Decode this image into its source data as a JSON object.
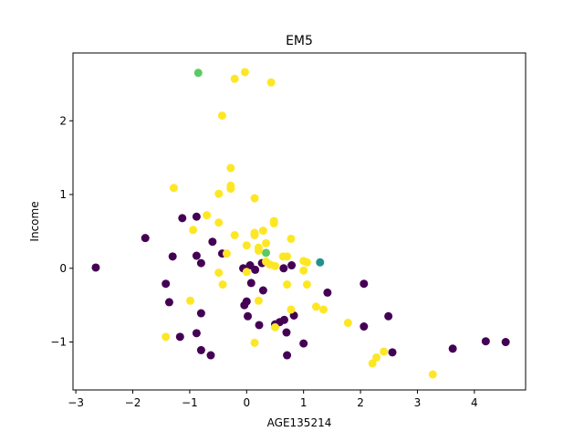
{
  "chart_data": {
    "type": "scatter",
    "title": "EM5",
    "xlabel": "AGE135214",
    "ylabel": "Income",
    "xlim": [
      -3.05,
      4.9
    ],
    "ylim": [
      -1.65,
      2.92
    ],
    "xticks": [
      -3,
      -2,
      -1,
      0,
      1,
      2,
      3,
      4
    ],
    "yticks": [
      -1,
      0,
      1,
      2
    ],
    "grid": false,
    "colors": {
      "purple": "#440154",
      "teal": "#21918c",
      "green": "#5ec962",
      "yellow": "#fde725"
    },
    "points": [
      {
        "x": -2.65,
        "y": 0.01,
        "c": "purple"
      },
      {
        "x": -1.78,
        "y": 0.41,
        "c": "purple"
      },
      {
        "x": -1.42,
        "y": -0.21,
        "c": "purple"
      },
      {
        "x": -1.36,
        "y": -0.46,
        "c": "purple"
      },
      {
        "x": -1.3,
        "y": 0.16,
        "c": "purple"
      },
      {
        "x": -1.13,
        "y": 0.68,
        "c": "purple"
      },
      {
        "x": -1.17,
        "y": -0.93,
        "c": "purple"
      },
      {
        "x": -0.88,
        "y": 0.7,
        "c": "purple"
      },
      {
        "x": -0.88,
        "y": 0.17,
        "c": "purple"
      },
      {
        "x": -0.88,
        "y": -0.88,
        "c": "purple"
      },
      {
        "x": -0.8,
        "y": 0.07,
        "c": "purple"
      },
      {
        "x": -0.8,
        "y": -0.61,
        "c": "purple"
      },
      {
        "x": -0.8,
        "y": -1.11,
        "c": "purple"
      },
      {
        "x": -0.63,
        "y": -1.18,
        "c": "purple"
      },
      {
        "x": -0.6,
        "y": 0.36,
        "c": "purple"
      },
      {
        "x": -0.43,
        "y": 0.2,
        "c": "purple"
      },
      {
        "x": -0.06,
        "y": 0.0,
        "c": "purple"
      },
      {
        "x": -0.04,
        "y": -0.5,
        "c": "purple"
      },
      {
        "x": 0.0,
        "y": -0.45,
        "c": "purple"
      },
      {
        "x": 0.02,
        "y": -0.65,
        "c": "purple"
      },
      {
        "x": 0.06,
        "y": 0.04,
        "c": "purple"
      },
      {
        "x": 0.08,
        "y": -0.2,
        "c": "purple"
      },
      {
        "x": 0.15,
        "y": -0.02,
        "c": "purple"
      },
      {
        "x": 0.22,
        "y": -0.77,
        "c": "purple"
      },
      {
        "x": 0.27,
        "y": 0.07,
        "c": "purple"
      },
      {
        "x": 0.29,
        "y": -0.3,
        "c": "purple"
      },
      {
        "x": 0.5,
        "y": -0.76,
        "c": "purple"
      },
      {
        "x": 0.58,
        "y": -0.73,
        "c": "purple"
      },
      {
        "x": 0.65,
        "y": 0.0,
        "c": "purple"
      },
      {
        "x": 0.66,
        "y": -0.7,
        "c": "purple"
      },
      {
        "x": 0.7,
        "y": -0.87,
        "c": "purple"
      },
      {
        "x": 0.71,
        "y": -1.18,
        "c": "purple"
      },
      {
        "x": 0.79,
        "y": 0.04,
        "c": "purple"
      },
      {
        "x": 0.83,
        "y": -0.64,
        "c": "purple"
      },
      {
        "x": 1.0,
        "y": -1.02,
        "c": "purple"
      },
      {
        "x": 1.42,
        "y": -0.33,
        "c": "purple"
      },
      {
        "x": 2.06,
        "y": -0.21,
        "c": "purple"
      },
      {
        "x": 2.06,
        "y": -0.79,
        "c": "purple"
      },
      {
        "x": 2.49,
        "y": -0.65,
        "c": "purple"
      },
      {
        "x": 2.56,
        "y": -1.14,
        "c": "purple"
      },
      {
        "x": 3.62,
        "y": -1.09,
        "c": "purple"
      },
      {
        "x": 4.2,
        "y": -0.99,
        "c": "purple"
      },
      {
        "x": 4.55,
        "y": -1.0,
        "c": "purple"
      },
      {
        "x": 1.29,
        "y": 0.08,
        "c": "teal"
      },
      {
        "x": -0.85,
        "y": 2.65,
        "c": "green"
      },
      {
        "x": 0.34,
        "y": 0.21,
        "c": "green"
      },
      {
        "x": -0.03,
        "y": 2.66,
        "c": "yellow"
      },
      {
        "x": -0.21,
        "y": 2.57,
        "c": "yellow"
      },
      {
        "x": 0.43,
        "y": 2.52,
        "c": "yellow"
      },
      {
        "x": -0.43,
        "y": 2.07,
        "c": "yellow"
      },
      {
        "x": -0.28,
        "y": 1.36,
        "c": "yellow"
      },
      {
        "x": -0.28,
        "y": 1.12,
        "c": "yellow"
      },
      {
        "x": -0.28,
        "y": 1.08,
        "c": "yellow"
      },
      {
        "x": -1.28,
        "y": 1.09,
        "c": "yellow"
      },
      {
        "x": -0.49,
        "y": 1.01,
        "c": "yellow"
      },
      {
        "x": 0.14,
        "y": 0.95,
        "c": "yellow"
      },
      {
        "x": -0.7,
        "y": 0.72,
        "c": "yellow"
      },
      {
        "x": -0.49,
        "y": 0.62,
        "c": "yellow"
      },
      {
        "x": 0.48,
        "y": 0.64,
        "c": "yellow"
      },
      {
        "x": 0.48,
        "y": 0.61,
        "c": "yellow"
      },
      {
        "x": -0.94,
        "y": 0.52,
        "c": "yellow"
      },
      {
        "x": 0.29,
        "y": 0.51,
        "c": "yellow"
      },
      {
        "x": 0.14,
        "y": 0.48,
        "c": "yellow"
      },
      {
        "x": 0.14,
        "y": 0.45,
        "c": "yellow"
      },
      {
        "x": -0.21,
        "y": 0.45,
        "c": "yellow"
      },
      {
        "x": 0.78,
        "y": 0.4,
        "c": "yellow"
      },
      {
        "x": 0.34,
        "y": 0.34,
        "c": "yellow"
      },
      {
        "x": 0.0,
        "y": 0.31,
        "c": "yellow"
      },
      {
        "x": 0.21,
        "y": 0.28,
        "c": "yellow"
      },
      {
        "x": 0.21,
        "y": 0.24,
        "c": "yellow"
      },
      {
        "x": -0.35,
        "y": 0.2,
        "c": "yellow"
      },
      {
        "x": 0.64,
        "y": 0.16,
        "c": "yellow"
      },
      {
        "x": 0.71,
        "y": 0.16,
        "c": "yellow"
      },
      {
        "x": 0.34,
        "y": 0.09,
        "c": "yellow"
      },
      {
        "x": 0.41,
        "y": 0.05,
        "c": "yellow"
      },
      {
        "x": 0.5,
        "y": 0.03,
        "c": "yellow"
      },
      {
        "x": 1.0,
        "y": 0.1,
        "c": "yellow"
      },
      {
        "x": 1.06,
        "y": 0.08,
        "c": "yellow"
      },
      {
        "x": 0.0,
        "y": -0.05,
        "c": "yellow"
      },
      {
        "x": 1.0,
        "y": -0.03,
        "c": "yellow"
      },
      {
        "x": -0.49,
        "y": -0.06,
        "c": "yellow"
      },
      {
        "x": 0.71,
        "y": -0.22,
        "c": "yellow"
      },
      {
        "x": 1.06,
        "y": -0.22,
        "c": "yellow"
      },
      {
        "x": -0.42,
        "y": -0.22,
        "c": "yellow"
      },
      {
        "x": 0.21,
        "y": -0.44,
        "c": "yellow"
      },
      {
        "x": -0.99,
        "y": -0.44,
        "c": "yellow"
      },
      {
        "x": 1.22,
        "y": -0.52,
        "c": "yellow"
      },
      {
        "x": 1.35,
        "y": -0.56,
        "c": "yellow"
      },
      {
        "x": 0.78,
        "y": -0.56,
        "c": "yellow"
      },
      {
        "x": 1.78,
        "y": -0.74,
        "c": "yellow"
      },
      {
        "x": 0.5,
        "y": -0.8,
        "c": "yellow"
      },
      {
        "x": -1.42,
        "y": -0.93,
        "c": "yellow"
      },
      {
        "x": 0.14,
        "y": -1.01,
        "c": "yellow"
      },
      {
        "x": 2.41,
        "y": -1.13,
        "c": "yellow"
      },
      {
        "x": 2.28,
        "y": -1.21,
        "c": "yellow"
      },
      {
        "x": 2.21,
        "y": -1.29,
        "c": "yellow"
      },
      {
        "x": 3.27,
        "y": -1.44,
        "c": "yellow"
      }
    ]
  }
}
